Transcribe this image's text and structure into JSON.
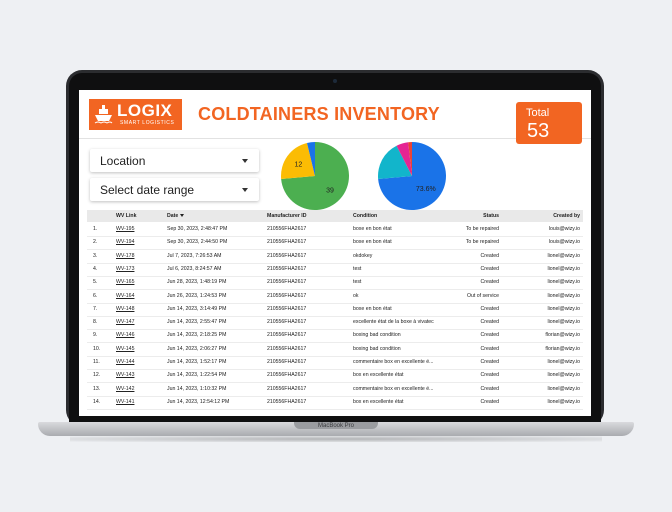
{
  "device": {
    "label": "MacBook Pro"
  },
  "header": {
    "logo_text": "LOGIX",
    "logo_sub": "SMART LOGISTICS",
    "title": "COLDTAINERS INVENTORY",
    "total_label": "Total",
    "total_value": "53"
  },
  "filters": {
    "location": "Location",
    "date_range": "Select date range"
  },
  "colors": {
    "brand_orange": "#f26522",
    "pie_green": "#4caf50",
    "pie_yellow": "#fbbc04",
    "pie_blue": "#1a73e8",
    "pie_teal": "#12b5cb",
    "pie_magenta": "#e52592",
    "pie_red": "#ea4335"
  },
  "chart_data": [
    {
      "type": "pie",
      "slices": [
        {
          "label": "39",
          "value": 39,
          "color": "#4caf50"
        },
        {
          "label": "12",
          "value": 12,
          "color": "#fbbc04"
        },
        {
          "label": "",
          "value": 2,
          "color": "#1a73e8"
        }
      ]
    },
    {
      "type": "pie",
      "slices": [
        {
          "label": "73.6%",
          "value": 73.6,
          "color": "#1a73e8"
        },
        {
          "label": "",
          "value": 18.9,
          "color": "#12b5cb"
        },
        {
          "label": "",
          "value": 5.7,
          "color": "#e52592"
        },
        {
          "label": "",
          "value": 1.8,
          "color": "#ea4335"
        }
      ]
    }
  ],
  "table": {
    "headers": {
      "num": "",
      "link": "WV Link",
      "date": "Date",
      "manufacturer": "Manufacturer ID",
      "condition": "Condition",
      "status": "Status",
      "created_by": "Created by"
    },
    "rows": [
      {
        "num": "1.",
        "link": "WV-195",
        "date": "Sep 30, 2023, 2:48:47 PM",
        "manufacturer": "210556FHA2617",
        "condition": "boxe en bon état",
        "status": "To be repaired",
        "created_by": "louis@wizy.io"
      },
      {
        "num": "2.",
        "link": "WV-194",
        "date": "Sep 30, 2023, 2:44:50 PM",
        "manufacturer": "210556FHA2617",
        "condition": "boxe en bon état",
        "status": "To be repaired",
        "created_by": "louis@wizy.io"
      },
      {
        "num": "3.",
        "link": "WV-178",
        "date": "Jul 7, 2023, 7:26:53 AM",
        "manufacturer": "210556FHA2617",
        "condition": "okdokey",
        "status": "Created",
        "created_by": "lionel@wizy.io"
      },
      {
        "num": "4.",
        "link": "WV-173",
        "date": "Jul 6, 2023, 8:24:57 AM",
        "manufacturer": "210556FHA2617",
        "condition": "test",
        "status": "Created",
        "created_by": "lionel@wizy.io"
      },
      {
        "num": "5.",
        "link": "WV-165",
        "date": "Jun 28, 2023, 1:48:19 PM",
        "manufacturer": "210556FHA2617",
        "condition": "test",
        "status": "Created",
        "created_by": "lionel@wizy.io"
      },
      {
        "num": "6.",
        "link": "WV-164",
        "date": "Jun 26, 2023, 1:24:53 PM",
        "manufacturer": "210556FHA2617",
        "condition": "ok",
        "status": "Out of service",
        "created_by": "lionel@wizy.io"
      },
      {
        "num": "7.",
        "link": "WV-148",
        "date": "Jun 14, 2023, 3:14:49 PM",
        "manufacturer": "210556FHA2617",
        "condition": "boxe en bon état",
        "status": "Created",
        "created_by": "lionel@wizy.io"
      },
      {
        "num": "8.",
        "link": "WV-147",
        "date": "Jun 14, 2023, 2:55:47 PM",
        "manufacturer": "210556FHA2617",
        "condition": "excellente état de la boxe à vivatec",
        "status": "Created",
        "created_by": "lionel@wizy.io"
      },
      {
        "num": "9.",
        "link": "WV-146",
        "date": "Jun 14, 2023, 2:18:25 PM",
        "manufacturer": "210556FHA2617",
        "condition": "boxing bad condition",
        "status": "Created",
        "created_by": "florian@wizy.io"
      },
      {
        "num": "10.",
        "link": "WV-145",
        "date": "Jun 14, 2023, 2:06:27 PM",
        "manufacturer": "210556FHA2617",
        "condition": "boxing bad condition",
        "status": "Created",
        "created_by": "florian@wizy.io"
      },
      {
        "num": "11.",
        "link": "WV-144",
        "date": "Jun 14, 2023, 1:52:17 PM",
        "manufacturer": "210556FHA2617",
        "condition": "commentaire box en excellente é...",
        "status": "Created",
        "created_by": "lionel@wizy.io"
      },
      {
        "num": "12.",
        "link": "WV-143",
        "date": "Jun 14, 2023, 1:22:54 PM",
        "manufacturer": "210556FHA2617",
        "condition": "box en excellente état",
        "status": "Created",
        "created_by": "lionel@wizy.io"
      },
      {
        "num": "13.",
        "link": "WV-142",
        "date": "Jun 14, 2023, 1:10:32 PM",
        "manufacturer": "210556FHA2617",
        "condition": "commentaire box en excellente é...",
        "status": "Created",
        "created_by": "lionel@wizy.io"
      },
      {
        "num": "14.",
        "link": "WV-141",
        "date": "Jun 14, 2023, 12:54:12 PM",
        "manufacturer": "210556FHA2617",
        "condition": "box en excellente état",
        "status": "Created",
        "created_by": "lionel@wizy.io"
      }
    ]
  }
}
